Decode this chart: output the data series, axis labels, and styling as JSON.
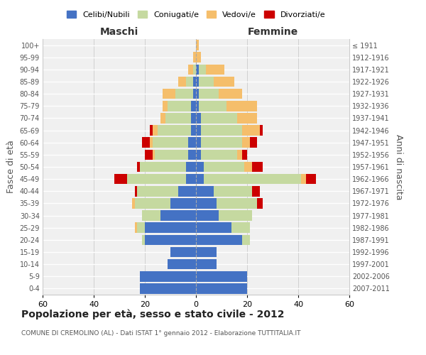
{
  "age_groups": [
    "0-4",
    "5-9",
    "10-14",
    "15-19",
    "20-24",
    "25-29",
    "30-34",
    "35-39",
    "40-44",
    "45-49",
    "50-54",
    "55-59",
    "60-64",
    "65-69",
    "70-74",
    "75-79",
    "80-84",
    "85-89",
    "90-94",
    "95-99",
    "100+"
  ],
  "birth_years": [
    "2007-2011",
    "2002-2006",
    "1997-2001",
    "1992-1996",
    "1987-1991",
    "1982-1986",
    "1977-1981",
    "1972-1976",
    "1967-1971",
    "1962-1966",
    "1957-1961",
    "1952-1956",
    "1947-1951",
    "1942-1946",
    "1937-1941",
    "1932-1936",
    "1927-1931",
    "1922-1926",
    "1917-1921",
    "1912-1916",
    "≤ 1911"
  ],
  "colors": {
    "celibi": "#4472C4",
    "coniugati": "#C5D9A0",
    "vedovi": "#F5BE6B",
    "divorziati": "#CC0000"
  },
  "maschi": {
    "celibi": [
      22,
      22,
      11,
      10,
      20,
      20,
      14,
      10,
      7,
      4,
      4,
      3,
      3,
      2,
      2,
      2,
      1,
      1,
      0,
      0,
      0
    ],
    "coniugati": [
      0,
      0,
      0,
      0,
      1,
      3,
      7,
      14,
      16,
      23,
      18,
      13,
      14,
      13,
      10,
      9,
      7,
      3,
      1,
      0,
      0
    ],
    "vedovi": [
      0,
      0,
      0,
      0,
      0,
      1,
      0,
      1,
      0,
      0,
      0,
      1,
      1,
      2,
      2,
      2,
      5,
      3,
      2,
      1,
      0
    ],
    "divorziati": [
      0,
      0,
      0,
      0,
      0,
      0,
      0,
      0,
      1,
      5,
      1,
      3,
      3,
      1,
      0,
      0,
      0,
      0,
      0,
      0,
      0
    ]
  },
  "femmine": {
    "celibi": [
      20,
      20,
      8,
      8,
      18,
      14,
      9,
      8,
      7,
      3,
      3,
      2,
      2,
      2,
      2,
      1,
      1,
      1,
      1,
      0,
      0
    ],
    "coniugati": [
      0,
      0,
      0,
      0,
      3,
      7,
      13,
      16,
      15,
      38,
      16,
      14,
      16,
      16,
      14,
      11,
      8,
      6,
      3,
      0,
      0
    ],
    "vedovi": [
      0,
      0,
      0,
      0,
      0,
      0,
      0,
      0,
      0,
      2,
      3,
      2,
      3,
      7,
      8,
      12,
      9,
      8,
      7,
      2,
      1
    ],
    "divorziati": [
      0,
      0,
      0,
      0,
      0,
      0,
      0,
      2,
      3,
      4,
      4,
      2,
      3,
      1,
      0,
      0,
      0,
      0,
      0,
      0,
      0
    ]
  },
  "xlim": 60,
  "title": "Popolazione per età, sesso e stato civile - 2012",
  "subtitle": "COMUNE DI CREMOLINO (AL) - Dati ISTAT 1° gennaio 2012 - Elaborazione TUTTITALIA.IT",
  "ylabel_left": "Fasce di età",
  "ylabel_right": "Anni di nascita",
  "xlabel_maschi": "Maschi",
  "xlabel_femmine": "Femmine",
  "legend_labels": [
    "Celibi/Nubili",
    "Coniugati/e",
    "Vedovi/e",
    "Divorziati/e"
  ],
  "bg_color": "#f0f0f0",
  "bar_height": 0.85
}
